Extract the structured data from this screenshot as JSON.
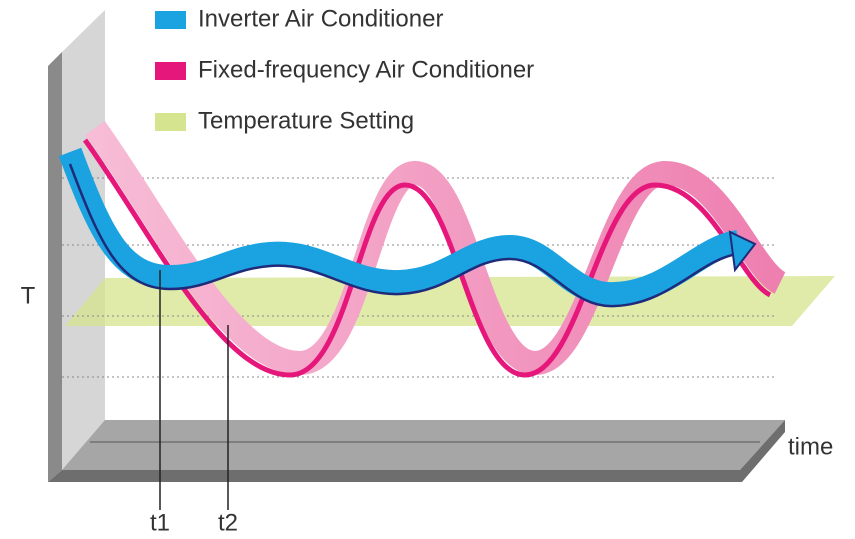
{
  "legend": [
    {
      "label": "Inverter Air Conditioner"
    },
    {
      "label": "Fixed-frequency Air Conditioner"
    },
    {
      "label": "Temperature Setting"
    }
  ],
  "axis": {
    "y_label": "T",
    "x_label": "time"
  },
  "markers": [
    "t1",
    "t2"
  ]
}
